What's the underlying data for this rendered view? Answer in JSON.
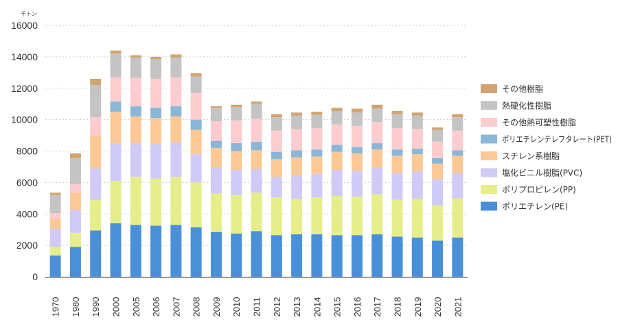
{
  "chart_data": {
    "type": "bar",
    "stacked": true,
    "title": "",
    "xlabel": "",
    "ylabel": "千トン",
    "ylim": [
      0,
      16000
    ],
    "yticks": [
      0,
      2000,
      4000,
      6000,
      8000,
      10000,
      12000,
      14000,
      16000
    ],
    "grid": true,
    "legend_position": "right",
    "categories": [
      "1970",
      "1980",
      "1990",
      "2000",
      "2005",
      "2006",
      "2007",
      "2008",
      "2009",
      "2010",
      "2011",
      "2012",
      "2013",
      "2014",
      "2015",
      "2016",
      "2017",
      "2018",
      "2019",
      "2020",
      "2021"
    ],
    "series": [
      {
        "name": "ポリエチレン(PE)",
        "color": "#4a90d9",
        "values": [
          1350,
          1900,
          2950,
          3400,
          3300,
          3250,
          3300,
          3150,
          2850,
          2750,
          2900,
          2650,
          2700,
          2700,
          2650,
          2650,
          2700,
          2550,
          2500,
          2300,
          2500
        ]
      },
      {
        "name": "ポリプロピレン(PP)",
        "color": "#e6ee8c",
        "values": [
          550,
          900,
          1950,
          2700,
          3050,
          3000,
          3050,
          2850,
          2450,
          2450,
          2450,
          2400,
          2250,
          2350,
          2500,
          2450,
          2550,
          2350,
          2450,
          2250,
          2500
        ]
      },
      {
        "name": "塩化ビニル樹脂(PVC)",
        "color": "#cfcaf6",
        "values": [
          1150,
          1450,
          2000,
          2400,
          2150,
          2200,
          2200,
          1800,
          1650,
          1600,
          1500,
          1300,
          1500,
          1500,
          1650,
          1650,
          1700,
          1700,
          1750,
          1650,
          1600
        ]
      },
      {
        "name": "スチレン系樹脂",
        "color": "#fcc996",
        "values": [
          650,
          1100,
          2100,
          2000,
          1700,
          1650,
          1650,
          1550,
          1250,
          1200,
          1200,
          1150,
          1150,
          1100,
          1150,
          1100,
          1150,
          1100,
          1100,
          1000,
          1100
        ]
      },
      {
        "name": "ポリエチレンテレフタレート(PET)",
        "color": "#8ab7d8",
        "values": [
          0,
          0,
          0,
          650,
          650,
          650,
          650,
          650,
          450,
          500,
          550,
          450,
          450,
          450,
          450,
          400,
          400,
          400,
          350,
          350,
          350
        ]
      },
      {
        "name": "その他熱可塑性樹脂",
        "color": "#fdcccf",
        "values": [
          350,
          550,
          1150,
          1550,
          1800,
          1850,
          1850,
          1700,
          1250,
          1450,
          1450,
          1350,
          1350,
          1350,
          1300,
          1350,
          1350,
          1350,
          1250,
          1050,
          1250
        ]
      },
      {
        "name": "熱硬化性樹脂",
        "color": "#c4c4c4",
        "values": [
          1150,
          1650,
          2050,
          1500,
          1300,
          1250,
          1250,
          1050,
          850,
          850,
          950,
          850,
          850,
          850,
          850,
          850,
          850,
          900,
          850,
          750,
          850
        ]
      },
      {
        "name": "その他樹脂",
        "color": "#d1a472",
        "values": [
          150,
          300,
          400,
          200,
          150,
          150,
          200,
          200,
          100,
          150,
          150,
          200,
          200,
          200,
          200,
          250,
          250,
          200,
          200,
          150,
          200
        ]
      }
    ]
  }
}
